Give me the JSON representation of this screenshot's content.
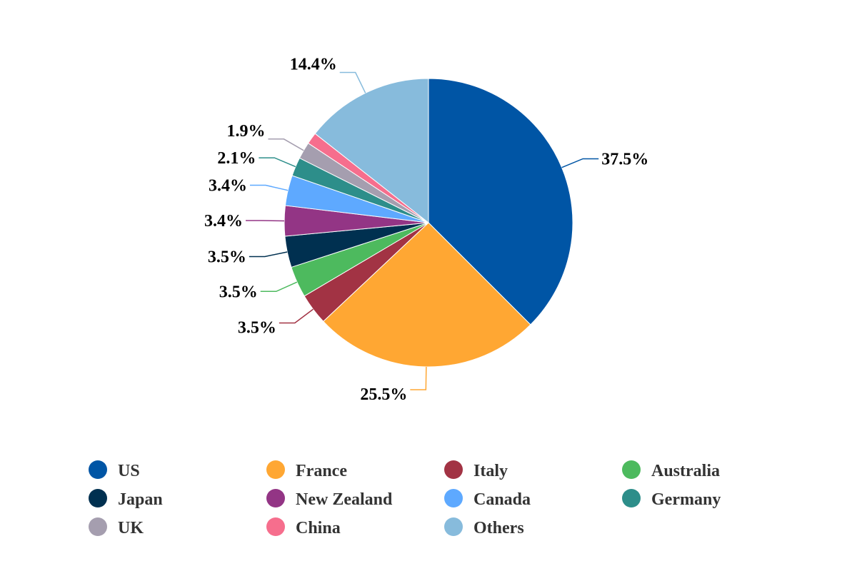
{
  "chart_data": {
    "type": "pie",
    "title": "",
    "slices": [
      {
        "name": "US",
        "value": 37.5,
        "label": "37.5%",
        "color": "#0055a5"
      },
      {
        "name": "France",
        "value": 25.5,
        "label": "25.5%",
        "color": "#ffa733"
      },
      {
        "name": "Italy",
        "value": 3.5,
        "label": "3.5%",
        "color": "#a23344"
      },
      {
        "name": "Australia",
        "value": 3.5,
        "label": "3.5%",
        "color": "#4dba5e"
      },
      {
        "name": "Japan",
        "value": 3.5,
        "label": "3.5%",
        "color": "#003050"
      },
      {
        "name": "New Zealand",
        "value": 3.4,
        "label": "3.4%",
        "color": "#933585"
      },
      {
        "name": "Canada",
        "value": 3.4,
        "label": "3.4%",
        "color": "#5ea9ff"
      },
      {
        "name": "Germany",
        "value": 2.1,
        "label": "2.1%",
        "color": "#2d8e8a"
      },
      {
        "name": "UK",
        "value": 1.9,
        "label": "1.9%",
        "color": "#a59eaf"
      },
      {
        "name": "China",
        "value": 1.3,
        "label": "",
        "color": "#f66e8d"
      },
      {
        "name": "Others",
        "value": 14.4,
        "label": "14.4%",
        "color": "#87bbdc"
      }
    ],
    "legend_position": "bottom"
  }
}
